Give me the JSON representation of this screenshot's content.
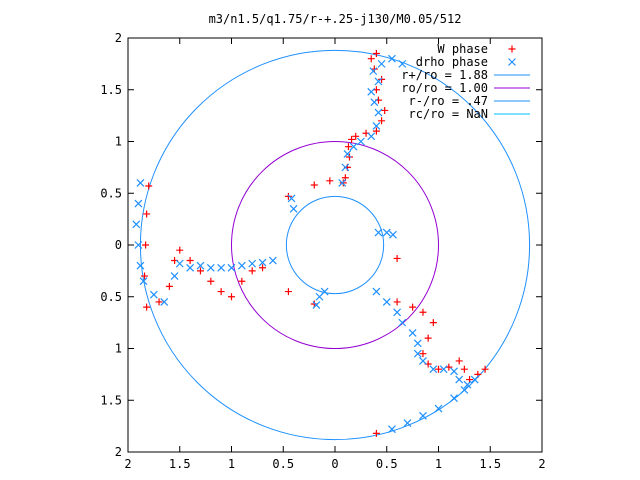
{
  "chart_data": {
    "type": "scatter",
    "title": "m3/n1.5/q1.75/r-+.25-j130/M0.05/512",
    "xlabel": "",
    "ylabel": "",
    "xlim": [
      -2,
      2
    ],
    "ylim": [
      -2,
      2
    ],
    "x_ticks": [
      -2,
      -1.5,
      -1,
      -0.5,
      0,
      0.5,
      1,
      1.5,
      2
    ],
    "y_ticks": [
      -2,
      -1.5,
      -1,
      -0.5,
      0,
      0.5,
      1,
      1.5,
      2
    ],
    "x_tick_labels": [
      "2",
      "1.5",
      "1",
      "0.5",
      "0",
      "0.5",
      "1",
      "1.5",
      "2"
    ],
    "y_tick_labels": [
      "2",
      "1.5",
      "1",
      "0.5",
      "0",
      "0.5",
      "1",
      "1.5",
      "2"
    ],
    "grid": false,
    "legend_position": "top-right",
    "series": [
      {
        "name": "W phase",
        "marker": "plus",
        "color": "#ff0000",
        "points": [
          [
            0.08,
            0.6
          ],
          [
            0.1,
            0.65
          ],
          [
            0.12,
            0.75
          ],
          [
            0.14,
            0.85
          ],
          [
            0.13,
            0.95
          ],
          [
            0.16,
            1.02
          ],
          [
            0.2,
            1.05
          ],
          [
            0.3,
            1.08
          ],
          [
            0.4,
            1.1
          ],
          [
            0.45,
            1.2
          ],
          [
            0.48,
            1.3
          ],
          [
            0.42,
            1.4
          ],
          [
            0.4,
            1.5
          ],
          [
            0.45,
            1.6
          ],
          [
            0.38,
            1.7
          ],
          [
            0.35,
            1.8
          ],
          [
            0.4,
            1.85
          ],
          [
            -0.45,
            0.47
          ],
          [
            -0.2,
            0.58
          ],
          [
            -0.05,
            0.62
          ],
          [
            0.6,
            -0.13
          ],
          [
            -1.8,
            0.57
          ],
          [
            -1.82,
            0.3
          ],
          [
            -1.83,
            0.0
          ],
          [
            -1.84,
            -0.3
          ],
          [
            -1.82,
            -0.6
          ],
          [
            -1.7,
            -0.55
          ],
          [
            -1.6,
            -0.4
          ],
          [
            -1.55,
            -0.15
          ],
          [
            -1.5,
            -0.05
          ],
          [
            -1.4,
            -0.15
          ],
          [
            -1.3,
            -0.25
          ],
          [
            -1.2,
            -0.35
          ],
          [
            -1.1,
            -0.45
          ],
          [
            -1.0,
            -0.5
          ],
          [
            -0.9,
            -0.35
          ],
          [
            -0.8,
            -0.25
          ],
          [
            -0.7,
            -0.22
          ],
          [
            -0.45,
            -0.45
          ],
          [
            -0.2,
            -0.57
          ],
          [
            0.6,
            -0.55
          ],
          [
            0.75,
            -0.6
          ],
          [
            0.85,
            -0.65
          ],
          [
            0.95,
            -0.75
          ],
          [
            0.9,
            -0.9
          ],
          [
            0.85,
            -1.05
          ],
          [
            0.9,
            -1.15
          ],
          [
            1.0,
            -1.2
          ],
          [
            1.1,
            -1.18
          ],
          [
            1.2,
            -1.12
          ],
          [
            1.25,
            -1.2
          ],
          [
            1.3,
            -1.3
          ],
          [
            1.38,
            -1.25
          ],
          [
            1.45,
            -1.2
          ],
          [
            0.4,
            -1.82
          ]
        ]
      },
      {
        "name": "drho phase",
        "marker": "cross",
        "color": "#1e90ff",
        "points": [
          [
            0.07,
            0.6
          ],
          [
            0.1,
            0.75
          ],
          [
            0.12,
            0.88
          ],
          [
            0.18,
            0.95
          ],
          [
            0.25,
            1.0
          ],
          [
            0.35,
            1.05
          ],
          [
            0.4,
            1.15
          ],
          [
            0.42,
            1.28
          ],
          [
            0.38,
            1.38
          ],
          [
            0.35,
            1.48
          ],
          [
            0.42,
            1.58
          ],
          [
            0.37,
            1.68
          ],
          [
            0.45,
            1.75
          ],
          [
            0.55,
            1.8
          ],
          [
            0.65,
            1.75
          ],
          [
            -0.42,
            0.45
          ],
          [
            -0.4,
            0.35
          ],
          [
            0.42,
            0.12
          ],
          [
            0.5,
            0.12
          ],
          [
            0.56,
            0.1
          ],
          [
            -1.88,
            0.6
          ],
          [
            -1.9,
            0.4
          ],
          [
            -1.92,
            0.2
          ],
          [
            -1.9,
            0.0
          ],
          [
            -1.88,
            -0.2
          ],
          [
            -1.85,
            -0.35
          ],
          [
            -1.75,
            -0.48
          ],
          [
            -1.65,
            -0.55
          ],
          [
            -1.55,
            -0.3
          ],
          [
            -1.5,
            -0.18
          ],
          [
            -1.4,
            -0.22
          ],
          [
            -1.3,
            -0.2
          ],
          [
            -1.2,
            -0.22
          ],
          [
            -1.1,
            -0.22
          ],
          [
            -1.0,
            -0.22
          ],
          [
            -0.9,
            -0.2
          ],
          [
            -0.8,
            -0.18
          ],
          [
            -0.7,
            -0.17
          ],
          [
            -0.6,
            -0.15
          ],
          [
            -0.18,
            -0.58
          ],
          [
            -0.15,
            -0.5
          ],
          [
            -0.1,
            -0.45
          ],
          [
            0.4,
            -0.45
          ],
          [
            0.5,
            -0.55
          ],
          [
            0.6,
            -0.65
          ],
          [
            0.65,
            -0.75
          ],
          [
            0.75,
            -0.85
          ],
          [
            0.8,
            -0.95
          ],
          [
            0.8,
            -1.05
          ],
          [
            0.85,
            -1.12
          ],
          [
            0.95,
            -1.2
          ],
          [
            1.05,
            -1.2
          ],
          [
            1.15,
            -1.22
          ],
          [
            1.2,
            -1.3
          ],
          [
            1.28,
            -1.35
          ],
          [
            1.35,
            -1.3
          ],
          [
            0.55,
            -1.78
          ],
          [
            0.7,
            -1.72
          ],
          [
            0.85,
            -1.65
          ],
          [
            1.0,
            -1.58
          ],
          [
            1.15,
            -1.48
          ],
          [
            1.25,
            -1.4
          ]
        ]
      }
    ],
    "circles": [
      {
        "name": "r+/ro = 1.88",
        "radius": 1.88,
        "color": "#1e90ff"
      },
      {
        "name": "ro/ro = 1.00",
        "radius": 1.0,
        "color": "#9400d3"
      },
      {
        "name": "r-/ro = .47",
        "radius": 0.47,
        "color": "#1e90ff"
      },
      {
        "name": "rc/ro = NaN",
        "radius": null,
        "color": "#00bfff"
      }
    ]
  }
}
